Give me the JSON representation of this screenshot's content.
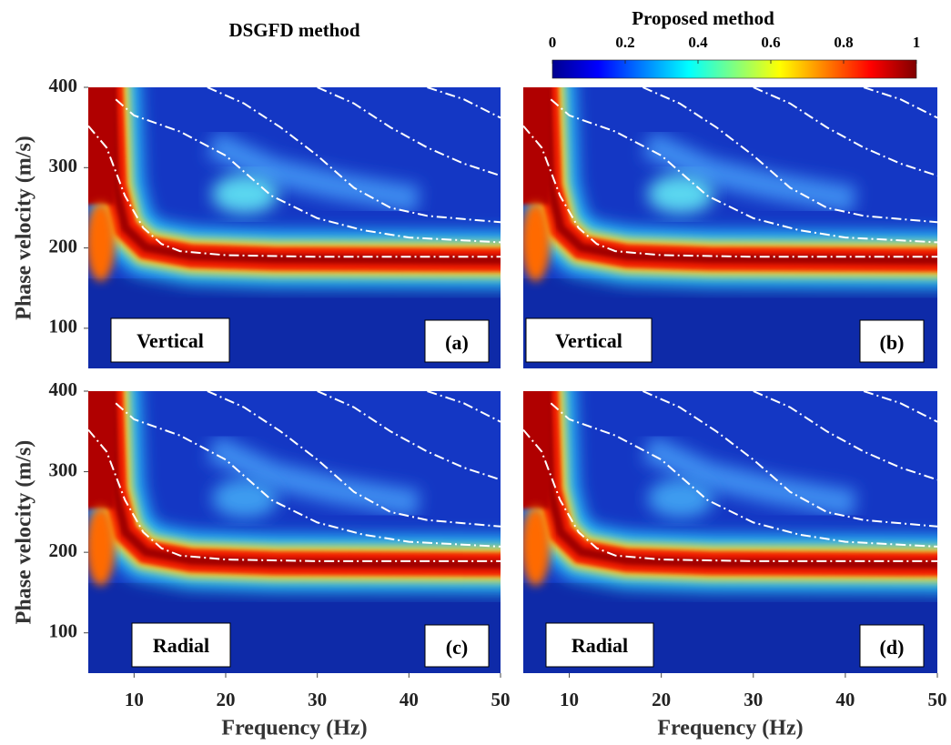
{
  "colorbar": {
    "lim": [
      0,
      1
    ],
    "ticks": [
      0,
      0.2,
      0.4,
      0.6,
      0.8,
      1
    ],
    "colormap": [
      "#00008f",
      "#0000ff",
      "#0080ff",
      "#00ffff",
      "#80ff80",
      "#ffff00",
      "#ff8000",
      "#ff0000",
      "#800000"
    ]
  },
  "chart_data": [
    {
      "type": "heatmap",
      "title": "DSGFD method",
      "ylabel": "Phase velocity (m/s)",
      "component": "Vertical",
      "panel_label": "(a)",
      "xlim": [
        5,
        50
      ],
      "ylim": [
        50,
        400
      ],
      "yticks": [
        100,
        200,
        300,
        400
      ],
      "series": [
        {
          "color": "#ffffff",
          "x": [
            5,
            7,
            9,
            11,
            13,
            15,
            20,
            30,
            50
          ],
          "values": [
            352,
            325,
            265,
            225,
            205,
            196,
            191,
            189,
            189
          ]
        },
        {
          "color": "#ffffff",
          "x": [
            8,
            10,
            15,
            20,
            25,
            30,
            35,
            40,
            50
          ],
          "values": [
            385,
            365,
            345,
            315,
            265,
            237,
            222,
            213,
            207
          ]
        },
        {
          "color": "#ffffff",
          "x": [
            18,
            22,
            26,
            30,
            34,
            38,
            42,
            50
          ],
          "values": [
            400,
            380,
            350,
            315,
            275,
            250,
            240,
            232
          ]
        },
        {
          "color": "#ffffff",
          "x": [
            30,
            34,
            38,
            42,
            46,
            50
          ],
          "values": [
            400,
            380,
            350,
            325,
            305,
            290
          ]
        },
        {
          "color": "#ffffff",
          "x": [
            42,
            46,
            50
          ],
          "values": [
            400,
            385,
            362
          ]
        }
      ]
    },
    {
      "type": "heatmap",
      "title": "Proposed method",
      "component": "Vertical",
      "panel_label": "(b)",
      "xlim": [
        5,
        50
      ],
      "ylim": [
        50,
        400
      ],
      "series": [
        {
          "color": "#ffffff",
          "x": [
            5,
            7,
            9,
            11,
            13,
            15,
            20,
            30,
            50
          ],
          "values": [
            352,
            325,
            265,
            225,
            205,
            196,
            191,
            189,
            189
          ]
        },
        {
          "color": "#ffffff",
          "x": [
            8,
            10,
            15,
            20,
            25,
            30,
            35,
            40,
            50
          ],
          "values": [
            385,
            365,
            345,
            315,
            265,
            237,
            222,
            213,
            207
          ]
        },
        {
          "color": "#ffffff",
          "x": [
            18,
            22,
            26,
            30,
            34,
            38,
            42,
            50
          ],
          "values": [
            400,
            380,
            350,
            315,
            275,
            250,
            240,
            232
          ]
        },
        {
          "color": "#ffffff",
          "x": [
            30,
            34,
            38,
            42,
            46,
            50
          ],
          "values": [
            400,
            380,
            350,
            325,
            305,
            290
          ]
        },
        {
          "color": "#ffffff",
          "x": [
            42,
            46,
            50
          ],
          "values": [
            400,
            385,
            362
          ]
        }
      ]
    },
    {
      "type": "heatmap",
      "xlabel": "Frequency (Hz)",
      "ylabel": "Phase velocity (m/s)",
      "component": "Radial",
      "panel_label": "(c)",
      "xlim": [
        5,
        50
      ],
      "ylim": [
        50,
        400
      ],
      "xticks": [
        10,
        20,
        30,
        40,
        50
      ],
      "yticks": [
        100,
        200,
        300,
        400
      ],
      "series": [
        {
          "color": "#ffffff",
          "x": [
            5,
            7,
            9,
            11,
            13,
            15,
            20,
            30,
            50
          ],
          "values": [
            352,
            325,
            265,
            225,
            205,
            196,
            191,
            189,
            189
          ]
        },
        {
          "color": "#ffffff",
          "x": [
            8,
            10,
            15,
            20,
            25,
            30,
            35,
            40,
            50
          ],
          "values": [
            385,
            365,
            345,
            315,
            265,
            237,
            222,
            213,
            207
          ]
        },
        {
          "color": "#ffffff",
          "x": [
            18,
            22,
            26,
            30,
            34,
            38,
            42,
            50
          ],
          "values": [
            400,
            380,
            350,
            315,
            275,
            250,
            240,
            232
          ]
        },
        {
          "color": "#ffffff",
          "x": [
            30,
            34,
            38,
            42,
            46,
            50
          ],
          "values": [
            400,
            380,
            350,
            325,
            305,
            290
          ]
        },
        {
          "color": "#ffffff",
          "x": [
            42,
            46,
            50
          ],
          "values": [
            400,
            385,
            362
          ]
        }
      ]
    },
    {
      "type": "heatmap",
      "xlabel": "Frequency (Hz)",
      "component": "Radial",
      "panel_label": "(d)",
      "xlim": [
        5,
        50
      ],
      "ylim": [
        50,
        400
      ],
      "xticks": [
        10,
        20,
        30,
        40,
        50
      ],
      "series": [
        {
          "color": "#ffffff",
          "x": [
            5,
            7,
            9,
            11,
            13,
            15,
            20,
            30,
            50
          ],
          "values": [
            352,
            325,
            265,
            225,
            205,
            196,
            191,
            189,
            189
          ]
        },
        {
          "color": "#ffffff",
          "x": [
            8,
            10,
            15,
            20,
            25,
            30,
            35,
            40,
            50
          ],
          "values": [
            385,
            365,
            345,
            315,
            265,
            237,
            222,
            213,
            207
          ]
        },
        {
          "color": "#ffffff",
          "x": [
            18,
            22,
            26,
            30,
            34,
            38,
            42,
            50
          ],
          "values": [
            400,
            380,
            350,
            315,
            275,
            250,
            240,
            232
          ]
        },
        {
          "color": "#ffffff",
          "x": [
            30,
            34,
            38,
            42,
            46,
            50
          ],
          "values": [
            400,
            380,
            350,
            325,
            305,
            290
          ]
        },
        {
          "color": "#ffffff",
          "x": [
            42,
            46,
            50
          ],
          "values": [
            400,
            385,
            362
          ]
        }
      ]
    }
  ]
}
